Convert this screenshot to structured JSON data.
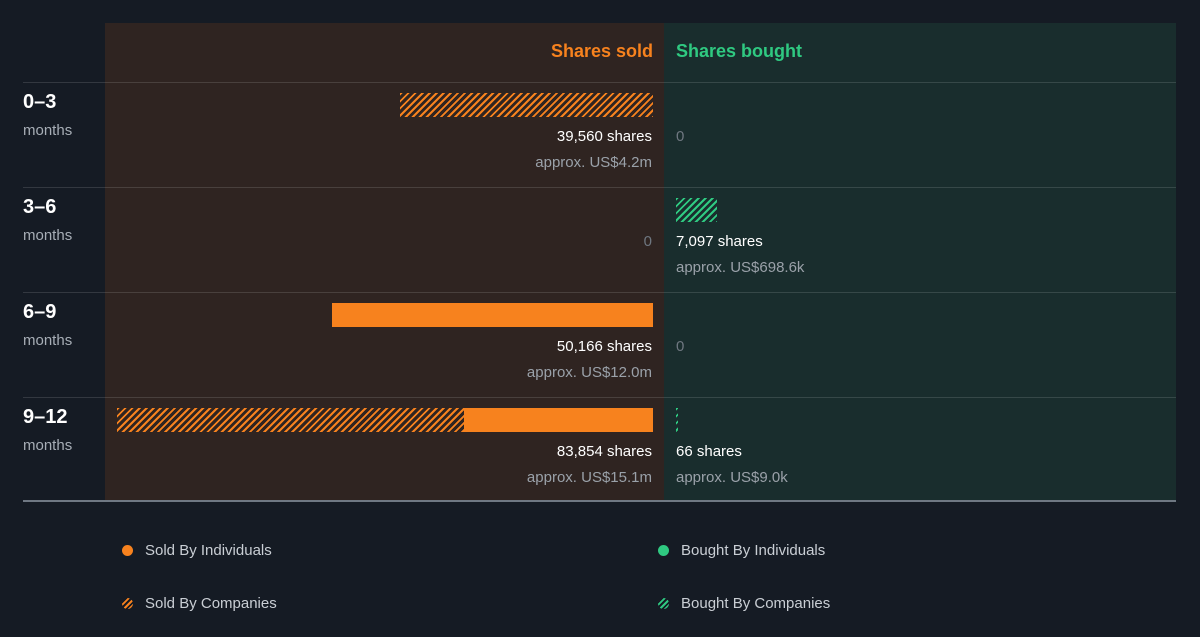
{
  "chart_data": {
    "type": "bar",
    "headers": {
      "sold": "Shares sold",
      "bought": "Shares bought"
    },
    "colors": {
      "sold": "#f7821e",
      "bought": "#2fc981"
    },
    "max_shares": 83854,
    "rows": [
      {
        "range": "0–3",
        "unit": "months",
        "sold": {
          "shares_label": "39,560 shares",
          "approx": "approx. US$4.2m",
          "zero": "",
          "individuals": 0,
          "companies": 39560
        },
        "bought": {
          "shares_label": "",
          "approx": "",
          "zero": "0",
          "individuals": 0,
          "companies": 0
        }
      },
      {
        "range": "3–6",
        "unit": "months",
        "sold": {
          "shares_label": "",
          "approx": "",
          "zero": "0",
          "individuals": 0,
          "companies": 0
        },
        "bought": {
          "shares_label": "7,097 shares",
          "approx": "approx. US$698.6k",
          "zero": "",
          "individuals": 0,
          "companies": 7097
        }
      },
      {
        "range": "6–9",
        "unit": "months",
        "sold": {
          "shares_label": "50,166 shares",
          "approx": "approx. US$12.0m",
          "zero": "",
          "individuals": 50166,
          "companies": 0
        },
        "bought": {
          "shares_label": "",
          "approx": "",
          "zero": "0",
          "individuals": 0,
          "companies": 0
        }
      },
      {
        "range": "9–12",
        "unit": "months",
        "sold": {
          "shares_label": "83,854 shares",
          "approx": "approx. US$15.1m",
          "zero": "",
          "individuals": 29500,
          "companies": 54354
        },
        "bought": {
          "shares_label": "66 shares",
          "approx": "approx. US$9.0k",
          "zero": "",
          "individuals": 0,
          "companies": 66
        }
      }
    ],
    "legend": {
      "sold_individuals": "Sold By Individuals",
      "sold_companies": "Sold By Companies",
      "bought_individuals": "Bought By Individuals",
      "bought_companies": "Bought By Companies"
    }
  }
}
